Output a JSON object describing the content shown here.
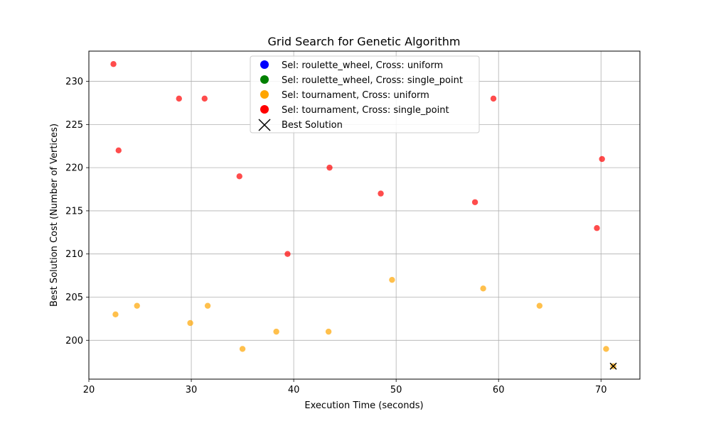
{
  "chart_data": {
    "type": "scatter",
    "title": "Grid Search for Genetic Algorithm",
    "xlabel": "Execution Time (seconds)",
    "ylabel": "Best Solution Cost (Number of Vertices)",
    "xlim": [
      20,
      73.8
    ],
    "ylim": [
      195.5,
      233.5
    ],
    "xticks": [
      20,
      30,
      40,
      50,
      60,
      70
    ],
    "yticks": [
      200,
      205,
      210,
      215,
      220,
      225,
      230
    ],
    "grid": true,
    "legend_position": "top-center",
    "series": [
      {
        "name": "Sel: roulette_wheel, Cross: uniform",
        "color": "#0000ff",
        "points": []
      },
      {
        "name": "Sel: roulette_wheel, Cross: single_point",
        "color": "#008000",
        "points": []
      },
      {
        "name": "Sel: tournament, Cross: uniform",
        "color": "#ffa500",
        "points": [
          [
            22.6,
            203
          ],
          [
            24.7,
            204
          ],
          [
            29.9,
            202
          ],
          [
            31.6,
            204
          ],
          [
            35.0,
            199
          ],
          [
            38.3,
            201
          ],
          [
            43.4,
            201
          ],
          [
            49.6,
            207
          ],
          [
            58.5,
            206
          ],
          [
            64.0,
            204
          ],
          [
            70.5,
            199
          ],
          [
            71.2,
            197
          ]
        ]
      },
      {
        "name": "Sel: tournament, Cross: single_point",
        "color": "#ff0000",
        "points": [
          [
            22.4,
            232
          ],
          [
            22.9,
            222
          ],
          [
            28.8,
            228
          ],
          [
            31.3,
            228
          ],
          [
            34.7,
            219
          ],
          [
            39.4,
            210
          ],
          [
            43.5,
            220
          ],
          [
            48.5,
            217
          ],
          [
            57.7,
            216
          ],
          [
            59.5,
            228
          ],
          [
            69.6,
            213
          ],
          [
            70.1,
            221
          ]
        ]
      }
    ],
    "best_solution": {
      "name": "Best Solution",
      "x": 71.2,
      "y": 197,
      "marker": "x",
      "color": "#000000"
    }
  }
}
